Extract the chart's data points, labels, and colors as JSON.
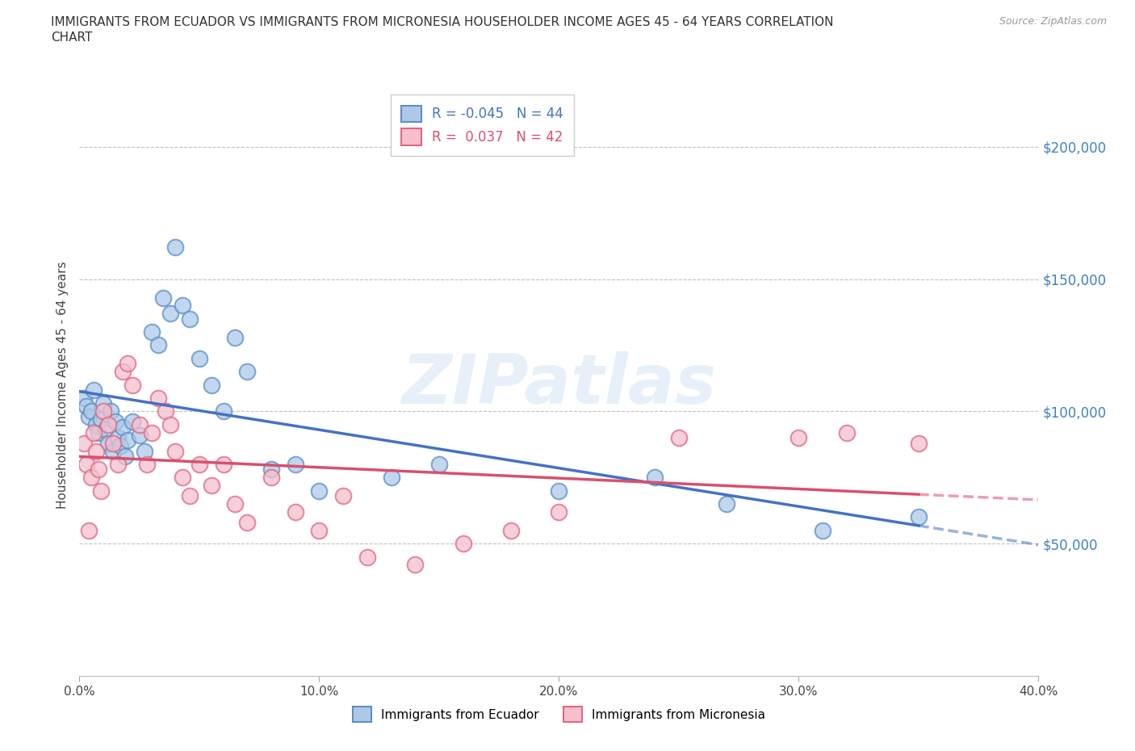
{
  "title_line1": "IMMIGRANTS FROM ECUADOR VS IMMIGRANTS FROM MICRONESIA HOUSEHOLDER INCOME AGES 45 - 64 YEARS CORRELATION",
  "title_line2": "CHART",
  "source": "Source: ZipAtlas.com",
  "ylabel": "Householder Income Ages 45 - 64 years",
  "watermark": "ZIPatlas",
  "ecuador_label": "Immigrants from Ecuador",
  "micronesia_label": "Immigrants from Micronesia",
  "ecuador_R": -0.045,
  "ecuador_N": 44,
  "micronesia_R": 0.037,
  "micronesia_N": 42,
  "ecuador_face_color": "#aec9e8",
  "ecuador_edge_color": "#5a8fc8",
  "micronesia_face_color": "#f5bfce",
  "micronesia_edge_color": "#e06882",
  "ecuador_line_color": "#4472c4",
  "micronesia_line_color": "#d94f6e",
  "right_axis_color": "#4080c0",
  "xlim": [
    0.0,
    0.4
  ],
  "ylim": [
    0,
    220000
  ],
  "ytick_values": [
    50000,
    100000,
    150000,
    200000
  ],
  "ytick_labels": [
    "$50,000",
    "$100,000",
    "$150,000",
    "$200,000"
  ],
  "xtick_values": [
    0.0,
    0.1,
    0.2,
    0.3,
    0.4
  ],
  "xtick_labels": [
    "0.0%",
    "10.0%",
    "20.0%",
    "30.0%",
    "40.0%"
  ],
  "ecuador_x": [
    0.002,
    0.003,
    0.004,
    0.005,
    0.006,
    0.007,
    0.008,
    0.009,
    0.01,
    0.011,
    0.012,
    0.013,
    0.014,
    0.015,
    0.016,
    0.017,
    0.018,
    0.019,
    0.02,
    0.022,
    0.025,
    0.027,
    0.03,
    0.033,
    0.035,
    0.038,
    0.04,
    0.043,
    0.046,
    0.05,
    0.055,
    0.06,
    0.065,
    0.07,
    0.08,
    0.09,
    0.1,
    0.13,
    0.15,
    0.2,
    0.24,
    0.27,
    0.31,
    0.35
  ],
  "ecuador_y": [
    105000,
    102000,
    98000,
    100000,
    108000,
    95000,
    92000,
    97000,
    103000,
    93000,
    88000,
    100000,
    85000,
    96000,
    90000,
    87000,
    94000,
    83000,
    89000,
    96000,
    91000,
    85000,
    130000,
    125000,
    143000,
    137000,
    162000,
    140000,
    135000,
    120000,
    110000,
    100000,
    128000,
    115000,
    78000,
    80000,
    70000,
    75000,
    80000,
    70000,
    75000,
    65000,
    55000,
    60000
  ],
  "micronesia_x": [
    0.002,
    0.003,
    0.004,
    0.005,
    0.006,
    0.007,
    0.008,
    0.009,
    0.01,
    0.012,
    0.014,
    0.016,
    0.018,
    0.02,
    0.022,
    0.025,
    0.028,
    0.03,
    0.033,
    0.036,
    0.038,
    0.04,
    0.043,
    0.046,
    0.05,
    0.055,
    0.06,
    0.065,
    0.07,
    0.08,
    0.09,
    0.1,
    0.11,
    0.12,
    0.14,
    0.16,
    0.18,
    0.2,
    0.25,
    0.3,
    0.32,
    0.35
  ],
  "micronesia_y": [
    88000,
    80000,
    55000,
    75000,
    92000,
    85000,
    78000,
    70000,
    100000,
    95000,
    88000,
    80000,
    115000,
    118000,
    110000,
    95000,
    80000,
    92000,
    105000,
    100000,
    95000,
    85000,
    75000,
    68000,
    80000,
    72000,
    80000,
    65000,
    58000,
    75000,
    62000,
    55000,
    68000,
    45000,
    42000,
    50000,
    55000,
    62000,
    90000,
    90000,
    92000,
    88000
  ]
}
